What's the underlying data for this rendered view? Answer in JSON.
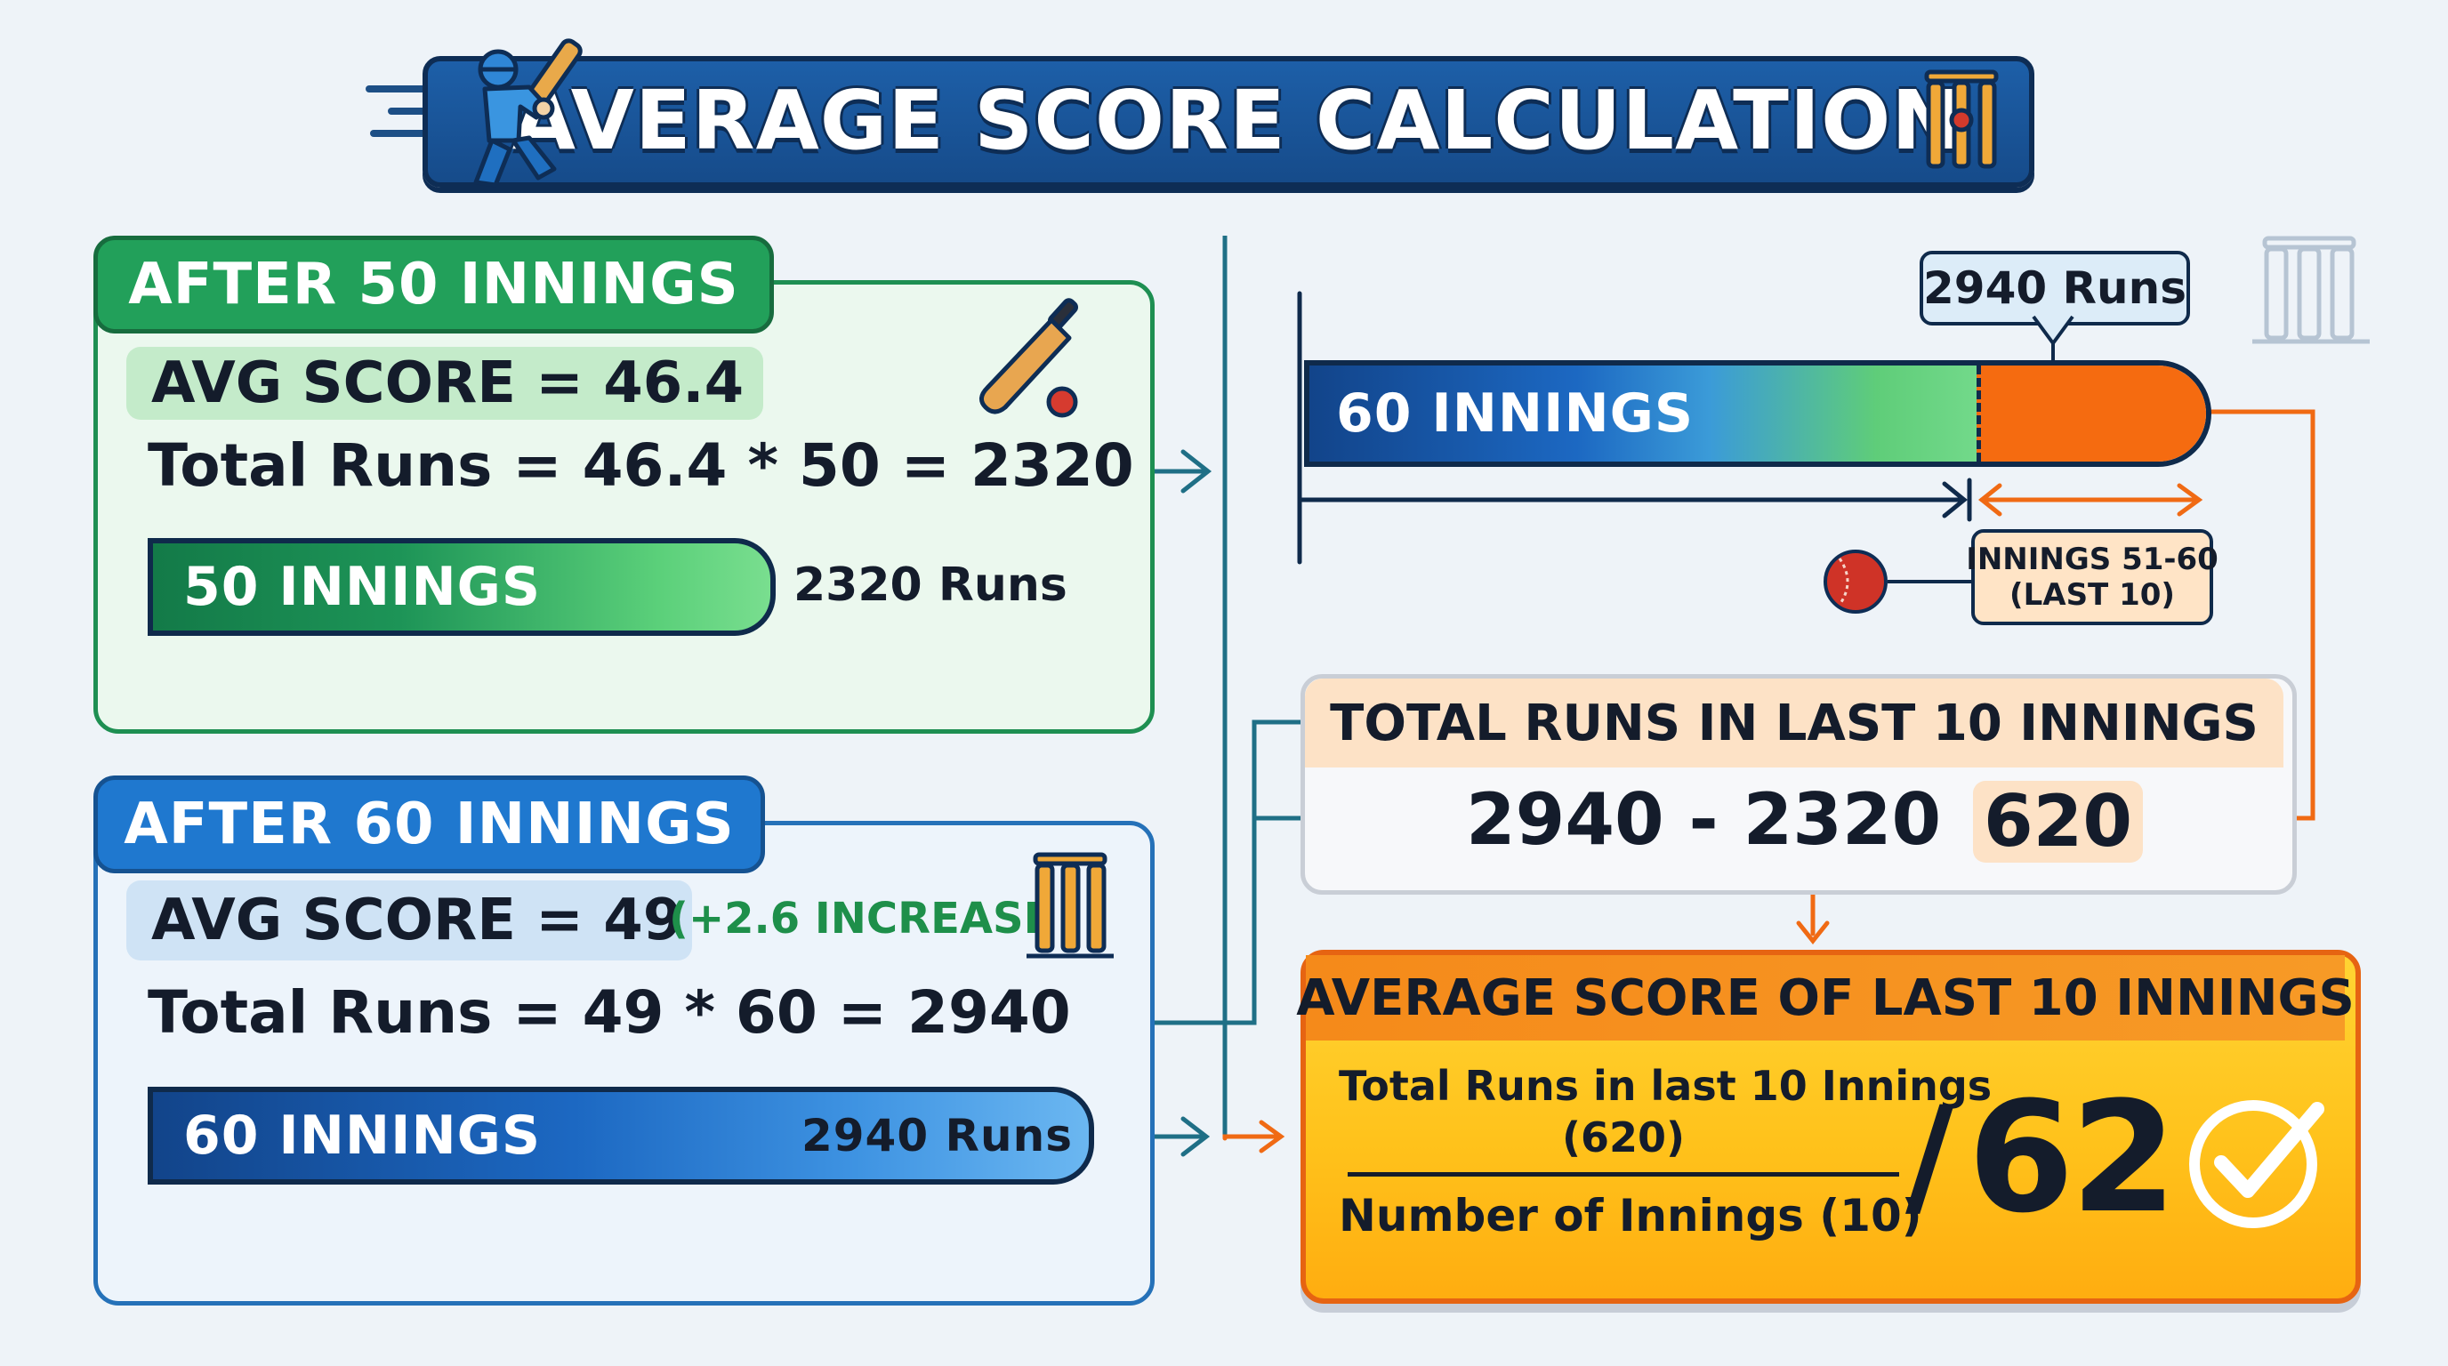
{
  "title": "AVERAGE SCORE CALCULATION",
  "after50": {
    "tab": "AFTER 50 INNINGS",
    "avg": "AVG SCORE = 46.4",
    "formula": "Total Runs = 46.4 * 50 = 2320",
    "bar_label": "50 INNINGS",
    "bar_runs": "2320 Runs"
  },
  "after60": {
    "tab": "AFTER 60 INNINGS",
    "avg": "AVG SCORE = 49",
    "increase": "(+2.6 INCREASE",
    "formula": "Total Runs = 49 * 60 = 2940",
    "bar_label": "60 INNINGS",
    "bar_runs": "2940 Runs"
  },
  "comparison": {
    "bar_label": "60 INNINGS",
    "callout": "2940 Runs",
    "tag_line1": "INNINGS 51-60",
    "tag_line2": "(LAST 10)"
  },
  "last10_total": {
    "title": "TOTAL RUNS IN LAST 10 INNINGS",
    "equation": "2940 - 2320 =",
    "result": "620"
  },
  "result": {
    "title": "AVERAGE SCORE OF LAST 10 INNINGS",
    "numerator_line1": "Total Runs in last 10 Innings",
    "numerator_line2": "(620)",
    "denominator": "Number of Innings (10)",
    "slash": "/",
    "value": "62"
  },
  "colors": {
    "green": "#22a05a",
    "blue": "#1f78cf",
    "orange": "#f56b10",
    "navy": "#0f2a4b",
    "yellow": "#ffc21b"
  }
}
